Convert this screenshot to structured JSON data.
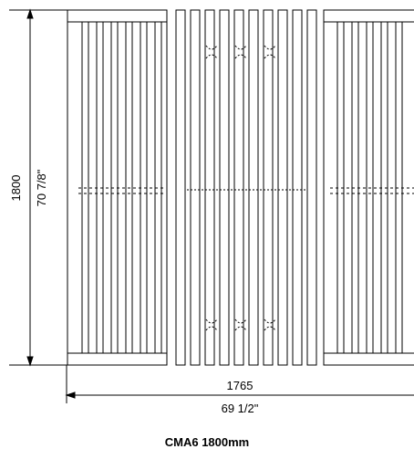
{
  "dimensions": {
    "height_mm": "1800",
    "height_in": "70 7/8\"",
    "width_mm": "1765",
    "width_in": "69 1/2\""
  },
  "caption": "CMA6 1800mm",
  "colors": {
    "line": "#000000",
    "background": "#ffffff"
  }
}
